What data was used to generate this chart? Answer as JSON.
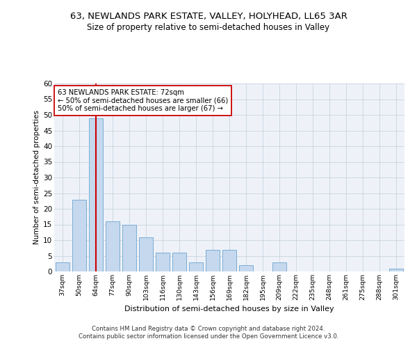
{
  "title": "63, NEWLANDS PARK ESTATE, VALLEY, HOLYHEAD, LL65 3AR",
  "subtitle": "Size of property relative to semi-detached houses in Valley",
  "xlabel": "Distribution of semi-detached houses by size in Valley",
  "ylabel": "Number of semi-detached properties",
  "categories": [
    "37sqm",
    "50sqm",
    "64sqm",
    "77sqm",
    "90sqm",
    "103sqm",
    "116sqm",
    "130sqm",
    "143sqm",
    "156sqm",
    "169sqm",
    "182sqm",
    "195sqm",
    "209sqm",
    "222sqm",
    "235sqm",
    "248sqm",
    "261sqm",
    "275sqm",
    "288sqm",
    "301sqm"
  ],
  "values": [
    3,
    23,
    49,
    16,
    15,
    11,
    6,
    6,
    3,
    7,
    7,
    2,
    0,
    3,
    0,
    0,
    0,
    0,
    0,
    0,
    1
  ],
  "bar_color": "#c5d8ee",
  "bar_edge_color": "#7aadd4",
  "grid_color": "#c8d4e0",
  "property_size_bar_index": 2,
  "annotation_text_line1": "63 NEWLANDS PARK ESTATE: 72sqm",
  "annotation_text_line2": "← 50% of semi-detached houses are smaller (66)",
  "annotation_text_line3": "50% of semi-detached houses are larger (67) →",
  "vline_color": "#cc0000",
  "annotation_box_edge_color": "#cc0000",
  "ylim": [
    0,
    60
  ],
  "yticks": [
    0,
    5,
    10,
    15,
    20,
    25,
    30,
    35,
    40,
    45,
    50,
    55,
    60
  ],
  "footer_line1": "Contains HM Land Registry data © Crown copyright and database right 2024.",
  "footer_line2": "Contains public sector information licensed under the Open Government Licence v3.0.",
  "bg_color": "#eef2f8",
  "title_fontsize": 9.5,
  "subtitle_fontsize": 8.5
}
